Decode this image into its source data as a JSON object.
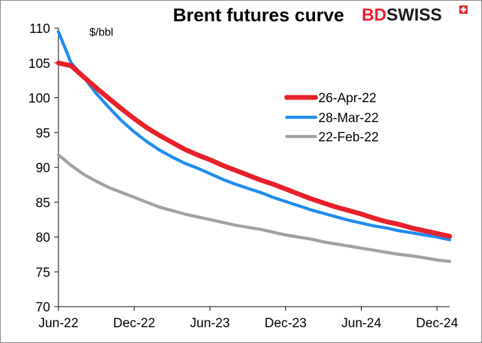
{
  "chart_data": {
    "type": "line",
    "title": "Brent futures curve",
    "ylabel": "$/bbl",
    "xlabel": "",
    "ylim": [
      70,
      110
    ],
    "yticks": [
      70,
      75,
      80,
      85,
      90,
      95,
      100,
      105,
      110
    ],
    "xlim": [
      "2022-06",
      "2025-01"
    ],
    "xticks": [
      {
        "label": "Jun-22",
        "value": "2022-06"
      },
      {
        "label": "Dec-22",
        "value": "2022-12"
      },
      {
        "label": "Jun-23",
        "value": "2023-06"
      },
      {
        "label": "Dec-23",
        "value": "2023-12"
      },
      {
        "label": "Jun-24",
        "value": "2024-06"
      },
      {
        "label": "Dec-24",
        "value": "2024-12"
      }
    ],
    "x": [
      "2022-06",
      "2022-07",
      "2022-08",
      "2022-09",
      "2022-10",
      "2022-11",
      "2022-12",
      "2023-01",
      "2023-02",
      "2023-03",
      "2023-04",
      "2023-05",
      "2023-06",
      "2023-07",
      "2023-08",
      "2023-09",
      "2023-10",
      "2023-11",
      "2023-12",
      "2024-01",
      "2024-02",
      "2024-03",
      "2024-04",
      "2024-05",
      "2024-06",
      "2024-07",
      "2024-08",
      "2024-09",
      "2024-10",
      "2024-11",
      "2024-12",
      "2025-01"
    ],
    "series": [
      {
        "name": "26-Apr-22",
        "color": "#e8202a",
        "values": [
          105.0,
          104.6,
          103.0,
          101.4,
          99.9,
          98.4,
          97.0,
          95.7,
          94.6,
          93.6,
          92.6,
          91.8,
          91.1,
          90.3,
          89.6,
          88.9,
          88.2,
          87.6,
          86.9,
          86.2,
          85.5,
          84.9,
          84.3,
          83.8,
          83.3,
          82.7,
          82.2,
          81.8,
          81.3,
          80.9,
          80.5,
          80.1
        ]
      },
      {
        "name": "28-Mar-22",
        "color": "#1e8cf0",
        "values": [
          109.5,
          105.0,
          103.0,
          100.6,
          98.6,
          96.7,
          95.1,
          93.7,
          92.5,
          91.5,
          90.6,
          89.9,
          89.1,
          88.3,
          87.6,
          87.0,
          86.4,
          85.7,
          85.1,
          84.5,
          83.9,
          83.4,
          82.9,
          82.4,
          82.0,
          81.6,
          81.3,
          80.9,
          80.6,
          80.3,
          80.0,
          79.6
        ]
      },
      {
        "name": "22-Feb-22",
        "color": "#a0a0a0",
        "values": [
          91.8,
          90.3,
          89.0,
          88.0,
          87.1,
          86.4,
          85.7,
          85.0,
          84.3,
          83.8,
          83.3,
          82.9,
          82.5,
          82.1,
          81.7,
          81.4,
          81.1,
          80.7,
          80.3,
          80.0,
          79.7,
          79.3,
          79.0,
          78.7,
          78.4,
          78.1,
          77.8,
          77.5,
          77.3,
          77.0,
          76.7,
          76.5
        ]
      }
    ],
    "legend_position": "right"
  },
  "brand": {
    "prefix": "BD",
    "suffix": "SWISS",
    "prefix_color": "#e8202a",
    "suffix_color": "#1a1a1a",
    "icon": "swiss-cross-icon"
  }
}
